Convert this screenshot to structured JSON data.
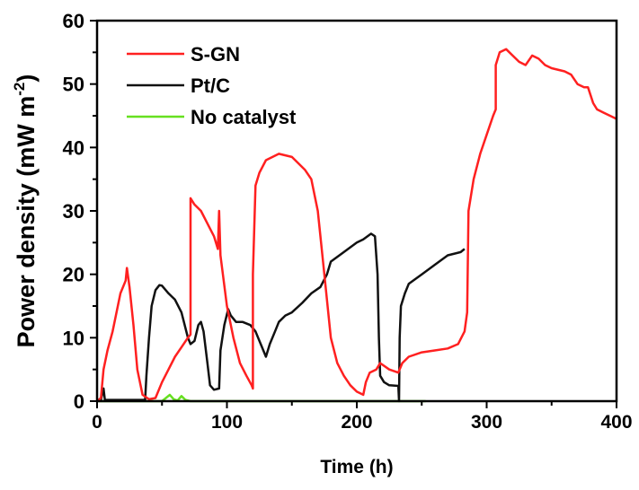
{
  "chart_data": {
    "type": "line",
    "xlabel": "Time (h)",
    "ylabel": "Power density (mW m",
    "ylabel_sup": "-2",
    "ylabel_end": ")",
    "xlim": [
      0,
      400
    ],
    "ylim": [
      0,
      60
    ],
    "xticks": [
      0,
      100,
      200,
      300,
      400
    ],
    "yticks": [
      0,
      10,
      20,
      30,
      40,
      50,
      60
    ],
    "grid": false,
    "legend_position": "top-left",
    "series": [
      {
        "name": "S-GN",
        "color": "#ff2020",
        "points": [
          [
            0,
            0
          ],
          [
            3,
            0.5
          ],
          [
            5,
            5
          ],
          [
            8,
            8
          ],
          [
            12,
            11
          ],
          [
            18,
            17
          ],
          [
            22,
            19
          ],
          [
            23,
            21
          ],
          [
            25,
            18
          ],
          [
            28,
            12
          ],
          [
            31,
            5
          ],
          [
            35,
            1
          ],
          [
            40,
            0.3
          ],
          [
            45,
            0.5
          ],
          [
            50,
            3
          ],
          [
            55,
            5
          ],
          [
            60,
            7
          ],
          [
            65,
            8.5
          ],
          [
            70,
            10
          ],
          [
            72,
            10.5
          ],
          [
            72,
            32
          ],
          [
            75,
            31
          ],
          [
            80,
            30
          ],
          [
            85,
            28
          ],
          [
            90,
            26
          ],
          [
            93,
            24
          ],
          [
            94,
            30
          ],
          [
            95,
            23
          ],
          [
            100,
            15
          ],
          [
            105,
            10
          ],
          [
            110,
            6
          ],
          [
            115,
            4
          ],
          [
            119,
            2.5
          ],
          [
            120,
            2
          ],
          [
            120,
            20
          ],
          [
            122,
            34
          ],
          [
            125,
            36
          ],
          [
            130,
            38
          ],
          [
            140,
            39
          ],
          [
            150,
            38.5
          ],
          [
            160,
            36.5
          ],
          [
            165,
            35
          ],
          [
            170,
            30
          ],
          [
            175,
            20
          ],
          [
            180,
            10
          ],
          [
            185,
            6
          ],
          [
            190,
            4
          ],
          [
            195,
            2.5
          ],
          [
            200,
            1.5
          ],
          [
            205,
            1
          ],
          [
            207,
            3
          ],
          [
            210,
            4.5
          ],
          [
            215,
            5
          ],
          [
            218,
            6
          ],
          [
            225,
            5
          ],
          [
            232,
            4.5
          ],
          [
            235,
            6
          ],
          [
            240,
            7
          ],
          [
            250,
            7.7
          ],
          [
            260,
            8
          ],
          [
            270,
            8.3
          ],
          [
            278,
            9
          ],
          [
            283,
            11
          ],
          [
            285,
            14
          ],
          [
            286,
            30
          ],
          [
            290,
            35
          ],
          [
            295,
            39
          ],
          [
            300,
            42
          ],
          [
            305,
            45
          ],
          [
            307,
            46
          ],
          [
            307,
            53
          ],
          [
            310,
            55
          ],
          [
            315,
            55.5
          ],
          [
            320,
            54.5
          ],
          [
            325,
            53.5
          ],
          [
            330,
            53
          ],
          [
            335,
            54.5
          ],
          [
            340,
            54
          ],
          [
            345,
            53
          ],
          [
            350,
            52.5
          ],
          [
            360,
            52
          ],
          [
            365,
            51.5
          ],
          [
            370,
            50
          ],
          [
            375,
            49.5
          ],
          [
            378,
            49.5
          ],
          [
            382,
            47
          ],
          [
            385,
            46
          ],
          [
            390,
            45.5
          ],
          [
            395,
            45
          ],
          [
            400,
            44.5
          ]
        ]
      },
      {
        "name": "Pt/C",
        "color": "#111111",
        "points": [
          [
            0,
            0
          ],
          [
            3,
            0.2
          ],
          [
            5,
            2
          ],
          [
            6,
            0.2
          ],
          [
            10,
            0.2
          ],
          [
            37,
            0.2
          ],
          [
            38,
            4
          ],
          [
            40,
            10
          ],
          [
            42,
            15
          ],
          [
            45,
            17.5
          ],
          [
            48,
            18.3
          ],
          [
            50,
            18.2
          ],
          [
            55,
            17
          ],
          [
            60,
            16
          ],
          [
            65,
            14
          ],
          [
            70,
            10
          ],
          [
            72,
            9
          ],
          [
            75,
            9.5
          ],
          [
            78,
            12
          ],
          [
            80,
            12.5
          ],
          [
            82,
            11
          ],
          [
            85,
            6
          ],
          [
            87,
            2.5
          ],
          [
            90,
            1.8
          ],
          [
            94,
            2
          ],
          [
            95,
            8
          ],
          [
            98,
            12
          ],
          [
            101,
            14.5
          ],
          [
            103,
            13.5
          ],
          [
            107,
            12.5
          ],
          [
            112,
            12.5
          ],
          [
            118,
            12
          ],
          [
            122,
            11
          ],
          [
            126,
            9
          ],
          [
            130,
            7
          ],
          [
            133,
            9
          ],
          [
            137,
            11
          ],
          [
            140,
            12.5
          ],
          [
            145,
            13.5
          ],
          [
            150,
            14
          ],
          [
            158,
            15.5
          ],
          [
            165,
            17
          ],
          [
            172,
            18
          ],
          [
            177,
            20
          ],
          [
            180,
            22
          ],
          [
            190,
            23.5
          ],
          [
            200,
            25
          ],
          [
            205,
            25.5
          ],
          [
            211,
            26.4
          ],
          [
            214,
            26
          ],
          [
            216,
            20
          ],
          [
            217,
            10
          ],
          [
            218,
            4
          ],
          [
            221,
            3
          ],
          [
            225,
            2.5
          ],
          [
            232,
            2.4
          ],
          [
            232.5,
            0
          ],
          [
            233,
            10
          ],
          [
            234,
            15
          ],
          [
            237,
            17
          ],
          [
            240,
            18.5
          ],
          [
            250,
            20
          ],
          [
            260,
            21.5
          ],
          [
            270,
            23
          ],
          [
            280,
            23.5
          ],
          [
            283,
            24
          ]
        ]
      },
      {
        "name": "No catalyst",
        "color": "#66e020",
        "points": [
          [
            0,
            0
          ],
          [
            50,
            0
          ],
          [
            53,
            0.5
          ],
          [
            56,
            1
          ],
          [
            59,
            0.3
          ],
          [
            62,
            0.1
          ],
          [
            65,
            0.8
          ],
          [
            68,
            0.2
          ],
          [
            72,
            0
          ],
          [
            253,
            0
          ]
        ]
      }
    ]
  }
}
